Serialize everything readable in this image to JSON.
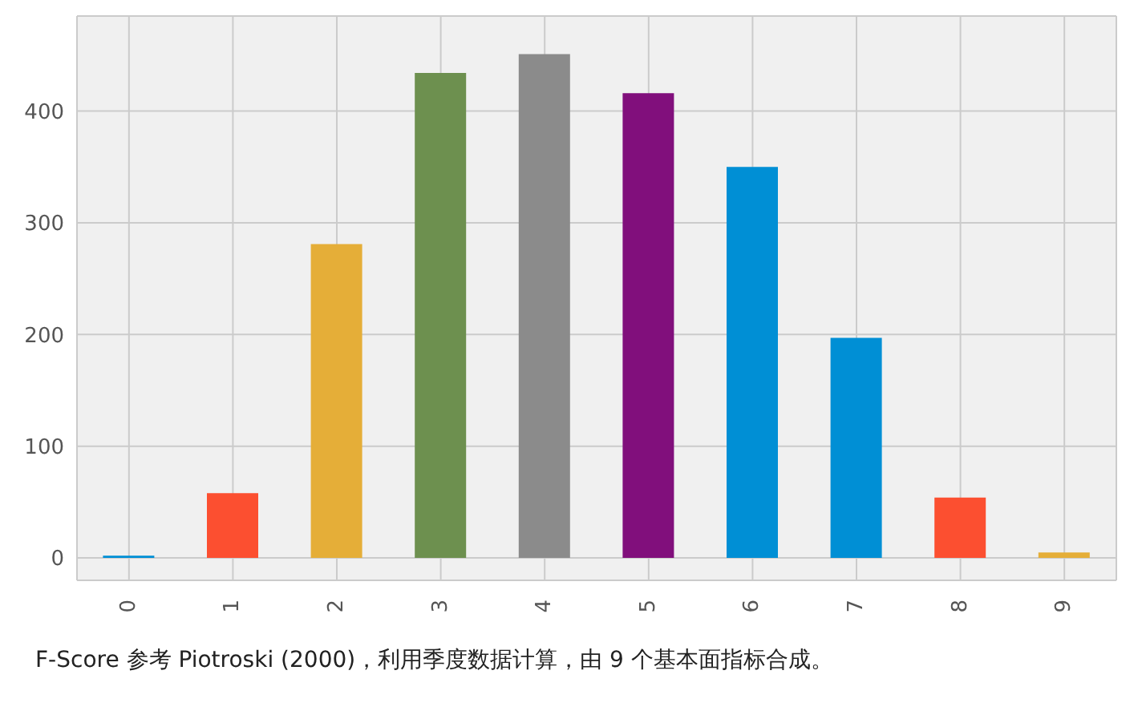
{
  "chart_data": {
    "type": "bar",
    "categories": [
      "0",
      "1",
      "2",
      "3",
      "4",
      "5",
      "6",
      "7",
      "8",
      "9"
    ],
    "values": [
      2,
      58,
      281,
      434,
      451,
      416,
      350,
      197,
      54,
      5
    ],
    "colors": [
      "#008fd5",
      "#fc4f30",
      "#e5ae38",
      "#6d904f",
      "#8b8b8b",
      "#810f7c",
      "#008fd5",
      "#008fd5",
      "#fc4f30",
      "#e5ae38"
    ],
    "ylim": [
      -20,
      485
    ],
    "yticks": [
      0,
      100,
      200,
      300,
      400
    ],
    "grid": true,
    "annotations": [
      "F-Score 参考 Piotroski (2000)，利用季度数据计算，由 9 个基本面指标合成。"
    ]
  }
}
